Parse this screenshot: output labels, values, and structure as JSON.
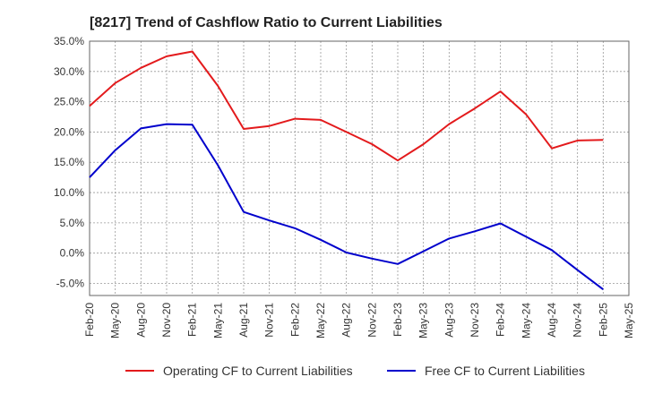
{
  "chart_data": {
    "type": "line",
    "title": "[8217]  Trend of Cashflow Ratio to Current Liabilities",
    "xlabel": "",
    "ylabel": "",
    "x": [
      "Feb-20",
      "May-20",
      "Aug-20",
      "Nov-20",
      "Feb-21",
      "May-21",
      "Aug-21",
      "Nov-21",
      "Feb-22",
      "May-22",
      "Aug-22",
      "Nov-22",
      "Feb-23",
      "May-23",
      "Aug-23",
      "Nov-23",
      "Feb-24",
      "May-24",
      "Aug-24",
      "Nov-24",
      "Feb-25",
      "May-25"
    ],
    "y_ticks": [
      "35.0%",
      "30.0%",
      "25.0%",
      "20.0%",
      "15.0%",
      "10.0%",
      "5.0%",
      "0.0%",
      "-5.0%"
    ],
    "ylim": [
      -7,
      35
    ],
    "grid": true,
    "legend_position": "bottom",
    "series": [
      {
        "name": "Operating CF to Current Liabilities",
        "color": "#e31a1c",
        "values": [
          24.3,
          28.1,
          30.6,
          32.5,
          33.3,
          27.6,
          20.5,
          21.0,
          22.2,
          22.0,
          20.0,
          18.0,
          15.3,
          18.0,
          21.3,
          23.9,
          26.7,
          22.9,
          17.3,
          18.6,
          18.7,
          null
        ]
      },
      {
        "name": "Free CF to Current Liabilities",
        "color": "#0000cc",
        "values": [
          12.5,
          17.0,
          20.6,
          21.3,
          21.2,
          14.5,
          6.8,
          5.4,
          4.1,
          2.2,
          0.1,
          -0.9,
          -1.8,
          0.3,
          2.4,
          3.6,
          4.9,
          2.7,
          0.5,
          -2.8,
          -6.0,
          null
        ]
      }
    ]
  }
}
